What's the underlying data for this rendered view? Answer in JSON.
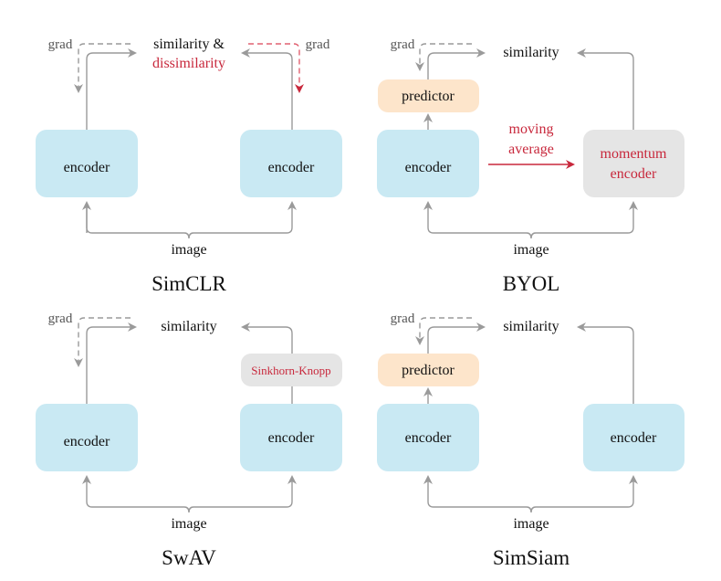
{
  "colors": {
    "encoder": "#c9e9f3",
    "predictor": "#fde5cb",
    "momentum": "#e5e5e5",
    "accent_red": "#c8283c",
    "arrow": "#9a9a9a"
  },
  "panels": {
    "simclr": {
      "title": "SimCLR",
      "similarity": "similarity &",
      "dissimilarity": "dissimilarity",
      "grad_left": "grad",
      "grad_right": "grad",
      "encoder_left": "encoder",
      "encoder_right": "encoder",
      "image": "image"
    },
    "byol": {
      "title": "BYOL",
      "similarity": "similarity",
      "grad": "grad",
      "predictor": "predictor",
      "encoder": "encoder",
      "moving": "moving",
      "average": "average",
      "momentum_1": "momentum",
      "momentum_2": "encoder",
      "image": "image"
    },
    "swav": {
      "title": "SwAV",
      "similarity": "similarity",
      "grad": "grad",
      "sinkhorn": "Sinkhorn-Knopp",
      "encoder_left": "encoder",
      "encoder_right": "encoder",
      "image": "image"
    },
    "simsiam": {
      "title": "SimSiam",
      "similarity": "similarity",
      "grad": "grad",
      "predictor": "predictor",
      "encoder_left": "encoder",
      "encoder_right": "encoder",
      "image": "image"
    }
  }
}
